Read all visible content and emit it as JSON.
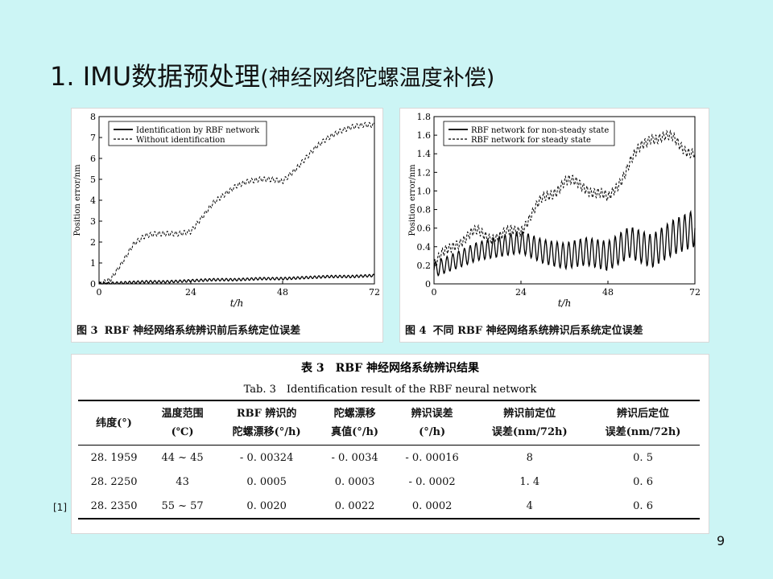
{
  "slide": {
    "title_main": "1. IMU数据预处理",
    "title_sub": "(神经网络陀螺温度补偿)",
    "ref_mark": "[1]",
    "page_number": "9"
  },
  "chart_data": [
    {
      "type": "line",
      "caption_num": "图 3",
      "caption": "RBF 神经网络系统辨识前后系统定位误差",
      "xlabel": "t/h",
      "ylabel": "Position error/nm",
      "xlim": [
        0,
        72
      ],
      "ylim": [
        0,
        8
      ],
      "xticks": [
        "0",
        "24",
        "48",
        "72"
      ],
      "yticks": [
        "0",
        "1",
        "2",
        "3",
        "4",
        "5",
        "6",
        "7",
        "8"
      ],
      "legend_position": "top-left",
      "series": [
        {
          "name": "Identification by RBF network",
          "style": "solid",
          "x": [
            0,
            6,
            12,
            18,
            24,
            30,
            36,
            42,
            48,
            54,
            60,
            66,
            72
          ],
          "y": [
            0,
            0.05,
            0.1,
            0.1,
            0.15,
            0.2,
            0.2,
            0.25,
            0.25,
            0.3,
            0.35,
            0.35,
            0.4
          ]
        },
        {
          "name": "Without identification",
          "style": "dashed",
          "x": [
            0,
            3,
            6,
            9,
            12,
            15,
            18,
            21,
            24,
            27,
            30,
            33,
            36,
            39,
            42,
            45,
            48,
            51,
            54,
            57,
            60,
            63,
            66,
            69,
            72
          ],
          "y": [
            0,
            0.2,
            1.0,
            1.9,
            2.3,
            2.4,
            2.4,
            2.4,
            2.5,
            3.2,
            3.9,
            4.3,
            4.7,
            4.9,
            5.0,
            5.0,
            4.9,
            5.4,
            6.0,
            6.6,
            7.0,
            7.3,
            7.5,
            7.6,
            7.6
          ]
        }
      ]
    },
    {
      "type": "line",
      "caption_num": "图 4",
      "caption": "不同 RBF 神经网络系统辨识后系统定位误差",
      "xlabel": "t/h",
      "ylabel": "Position error/nm",
      "xlim": [
        0,
        72
      ],
      "ylim": [
        0,
        1.8
      ],
      "xticks": [
        "0",
        "24",
        "48",
        "72"
      ],
      "yticks": [
        "0",
        "0.2",
        "0.4",
        "0.6",
        "0.8",
        "1.0",
        "1.2",
        "1.4",
        "1.6",
        "1.8"
      ],
      "legend_position": "top-left",
      "series": [
        {
          "name": "RBF network for non-steady state",
          "style": "solid",
          "x": [
            0,
            6,
            12,
            18,
            24,
            30,
            36,
            42,
            48,
            54,
            60,
            66,
            72
          ],
          "y": [
            0.15,
            0.25,
            0.35,
            0.4,
            0.45,
            0.35,
            0.3,
            0.35,
            0.3,
            0.45,
            0.35,
            0.5,
            0.6
          ]
        },
        {
          "name": "RBF network for steady state",
          "style": "dashed",
          "x": [
            0,
            6,
            12,
            18,
            24,
            30,
            36,
            42,
            48,
            54,
            60,
            66,
            72
          ],
          "y": [
            0.2,
            0.45,
            0.55,
            0.5,
            0.6,
            0.9,
            1.1,
            1.05,
            0.9,
            1.3,
            1.6,
            1.55,
            1.4
          ]
        }
      ]
    }
  ],
  "table": {
    "title_cn": "表 3　RBF 神经网络系统辨识结果",
    "title_en": "Tab. 3　Identification result of the RBF neural network",
    "headers": [
      {
        "line1": "纬度(°)",
        "line2": ""
      },
      {
        "line1": "温度范围",
        "line2": "(℃)"
      },
      {
        "line1": "RBF 辨识的",
        "line2": "陀螺漂移(°/h)"
      },
      {
        "line1": "陀螺漂移",
        "line2": "真值(°/h)"
      },
      {
        "line1": "辨识误差",
        "line2": "(°/h)"
      },
      {
        "line1": "辨识前定位",
        "line2": "误差(nm/72h)"
      },
      {
        "line1": "辨识后定位",
        "line2": "误差(nm/72h)"
      }
    ],
    "rows": [
      [
        "28. 1959",
        "44 ~ 45",
        "- 0. 00324",
        "- 0. 0034",
        "- 0. 00016",
        "8",
        "0. 5"
      ],
      [
        "28. 2250",
        "43",
        "0. 0005",
        "0. 0003",
        "- 0. 0002",
        "1. 4",
        "0. 6"
      ],
      [
        "28. 2350",
        "55 ~ 57",
        "0. 0020",
        "0. 0022",
        "0. 0002",
        "4",
        "0. 6"
      ]
    ]
  }
}
